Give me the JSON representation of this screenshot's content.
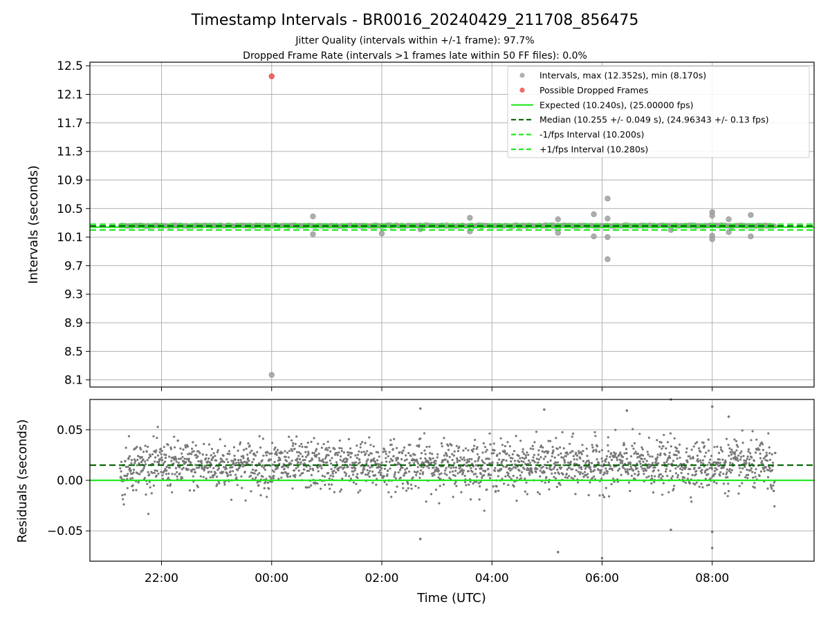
{
  "header": {
    "title": "Timestamp Intervals - BR0016_20240429_211708_856475",
    "subtitle1": "Jitter Quality (intervals within +/-1 frame): 97.7%",
    "subtitle2": "Dropped Frame Rate (intervals >1 frames late within 50 FF files): 0.0%"
  },
  "colors": {
    "intervals": "#a0a0a0",
    "dropped": "#f05050",
    "expected": "#22e822",
    "median": "#006400",
    "residual_points": "#777777"
  },
  "chart_data": [
    {
      "type": "scatter",
      "name": "intervals-panel",
      "ylabel": "Intervals (seconds)",
      "xlabel": "",
      "xlim_hours": [
        -3.3,
        9.85
      ],
      "ylim": [
        8.0,
        12.55
      ],
      "yticks": [
        8.1,
        8.5,
        8.9,
        9.3,
        9.7,
        10.1,
        10.5,
        10.9,
        11.3,
        11.7,
        12.1,
        12.5
      ],
      "ytick_labels": [
        "8.1",
        "8.5",
        "8.9",
        "9.3",
        "9.7",
        "10.1",
        "10.5",
        "10.9",
        "11.3",
        "11.7",
        "12.1",
        "12.5"
      ],
      "xticks_hours": [
        -2,
        0,
        2,
        4,
        6,
        8
      ],
      "xtick_labels": [
        "22:00",
        "00:00",
        "02:00",
        "04:00",
        "06:00",
        "08:00"
      ],
      "grid": true,
      "legend_position": "top-right",
      "legend": [
        {
          "label": "Intervals, max (12.352s), min (8.170s)",
          "kind": "marker",
          "color": "#a0a0a0"
        },
        {
          "label": "Possible Dropped Frames",
          "kind": "marker",
          "color": "#f05050"
        },
        {
          "label": "Expected (10.240s), (25.00000 fps)",
          "kind": "solid",
          "color": "#22e822"
        },
        {
          "label": "Median (10.255 +/- 0.049 s), (24.96343 +/- 0.13 fps)",
          "kind": "dashed",
          "color": "#006400"
        },
        {
          "label": "-1/fps Interval (10.200s)",
          "kind": "dashed",
          "color": "#22e822"
        },
        {
          "label": "+1/fps Interval (10.280s)",
          "kind": "dashed",
          "color": "#22e822"
        }
      ],
      "lines": {
        "expected": 10.24,
        "median": 10.255,
        "minus_one_frame": 10.2,
        "plus_one_frame": 10.28
      },
      "series_range_hours": [
        -2.75,
        9.15
      ],
      "baseline_interval": 10.26,
      "outliers": [
        {
          "x": 0.0,
          "y": 12.352,
          "dropped": true
        },
        {
          "x": 0.0,
          "y": 8.17
        },
        {
          "x": 0.75,
          "y": 10.39
        },
        {
          "x": 0.75,
          "y": 10.14
        },
        {
          "x": 2.0,
          "y": 10.15
        },
        {
          "x": 2.7,
          "y": 10.21
        },
        {
          "x": 3.6,
          "y": 10.37
        },
        {
          "x": 3.6,
          "y": 10.18
        },
        {
          "x": 5.2,
          "y": 10.35
        },
        {
          "x": 5.2,
          "y": 10.16
        },
        {
          "x": 5.85,
          "y": 10.42
        },
        {
          "x": 5.85,
          "y": 10.11
        },
        {
          "x": 6.1,
          "y": 10.64
        },
        {
          "x": 6.1,
          "y": 10.36
        },
        {
          "x": 6.1,
          "y": 10.1
        },
        {
          "x": 6.1,
          "y": 9.79
        },
        {
          "x": 7.25,
          "y": 10.2
        },
        {
          "x": 8.0,
          "y": 10.45
        },
        {
          "x": 8.0,
          "y": 10.4
        },
        {
          "x": 8.0,
          "y": 10.12
        },
        {
          "x": 8.0,
          "y": 10.07
        },
        {
          "x": 8.3,
          "y": 10.35
        },
        {
          "x": 8.3,
          "y": 10.17
        },
        {
          "x": 8.7,
          "y": 10.41
        },
        {
          "x": 8.7,
          "y": 10.11
        }
      ]
    },
    {
      "type": "scatter",
      "name": "residuals-panel",
      "ylabel": "Residuals (seconds)",
      "xlabel": "Time (UTC)",
      "xlim_hours": [
        -3.3,
        9.85
      ],
      "ylim": [
        -0.08,
        0.08
      ],
      "yticks": [
        -0.05,
        0.0,
        0.05
      ],
      "ytick_labels": [
        "−0.05",
        "0.00",
        "0.05"
      ],
      "xticks_hours": [
        -2,
        0,
        2,
        4,
        6,
        8
      ],
      "xtick_labels": [
        "22:00",
        "00:00",
        "02:00",
        "04:00",
        "06:00",
        "08:00"
      ],
      "grid": true,
      "lines": {
        "zero": 0.0,
        "median_offset": 0.015
      },
      "series_range_hours": [
        -2.75,
        9.15
      ],
      "residual_center": 0.015,
      "residual_spread": 0.012,
      "outliers": [
        {
          "x": 2.7,
          "y": 0.071
        },
        {
          "x": 2.7,
          "y": -0.058
        },
        {
          "x": 5.2,
          "y": -0.071
        },
        {
          "x": 6.0,
          "y": -0.077
        },
        {
          "x": 6.45,
          "y": 0.069
        },
        {
          "x": 7.25,
          "y": 0.08
        },
        {
          "x": 7.25,
          "y": -0.049
        },
        {
          "x": 8.0,
          "y": 0.073
        },
        {
          "x": 8.0,
          "y": -0.051
        },
        {
          "x": 8.0,
          "y": -0.067
        },
        {
          "x": 8.3,
          "y": 0.063
        },
        {
          "x": 4.95,
          "y": 0.07
        }
      ]
    }
  ]
}
